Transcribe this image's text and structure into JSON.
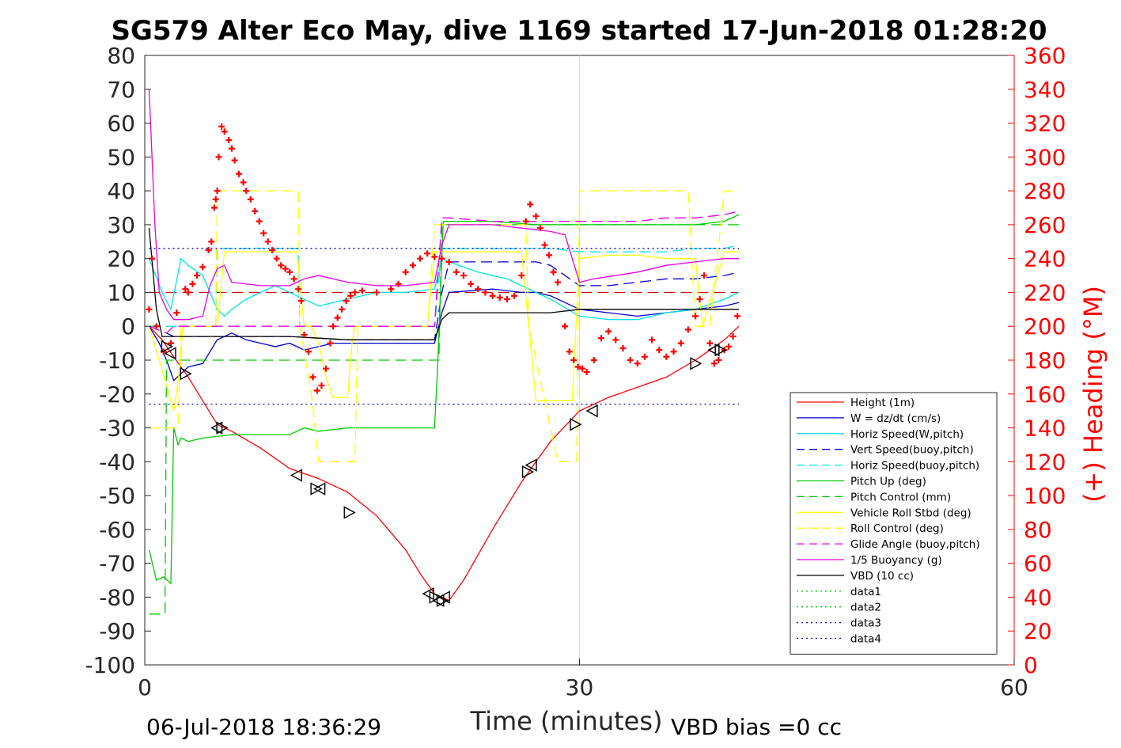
{
  "chart_data": {
    "type": "line",
    "title": "SG579 Alter Eco May, dive 1169 started 17-Jun-2018 01:28:20",
    "xlabel": "Time (minutes)",
    "ylabel_right": "(+) Heading (°M)",
    "footer_left": "06-Jul-2018 18:36:29",
    "footer_right": "VBD bias =0 cc",
    "xlim": [
      0,
      60
    ],
    "ylim": [
      -100,
      80
    ],
    "ylim_right": [
      0,
      360
    ],
    "x_ticks": [
      0,
      30,
      60
    ],
    "y_ticks": [
      -100,
      -90,
      -80,
      -70,
      -60,
      -50,
      -40,
      -30,
      -20,
      -10,
      0,
      10,
      20,
      30,
      40,
      50,
      60,
      70,
      80
    ],
    "y_ticks_right": [
      0,
      20,
      40,
      60,
      80,
      100,
      120,
      140,
      160,
      180,
      200,
      220,
      240,
      260,
      280,
      300,
      320,
      340,
      360
    ],
    "grid": "x at 30",
    "legend_position": "bottom-right",
    "colors": {
      "right_axis": "#ff0000",
      "heading_markers": "#ff0000",
      "turn_markers": "#000000"
    },
    "series": [
      {
        "name": "Height (1m)",
        "color": "#ff0000",
        "dash": "solid",
        "x": [
          0.3,
          1.2,
          2.0,
          3.0,
          4.0,
          5.0,
          6.0,
          8.0,
          10.0,
          12.0,
          14.0,
          16.0,
          18.0,
          19.0,
          20.0,
          21.0,
          22.0,
          24.0,
          26.0,
          27.0,
          28.0,
          30.0,
          32.0,
          34.0,
          36.0,
          38.0,
          39.0,
          40.0,
          41.0
        ],
        "y": [
          0,
          -4,
          -9,
          -15,
          -22,
          -29,
          -31,
          -36,
          -42,
          -45,
          -49,
          -56,
          -66,
          -73,
          -79,
          -81,
          -75,
          -60,
          -46,
          -40,
          -34,
          -25,
          -21,
          -18,
          -15,
          -10,
          -7,
          -4,
          0
        ]
      },
      {
        "name": "W = dz/dt (cm/s)",
        "color": "#0000cc",
        "dash": "solid",
        "x": [
          0.3,
          1.0,
          1.5,
          2.0,
          2.5,
          3.0,
          4.0,
          5.0,
          6.0,
          7.0,
          8.0,
          9.0,
          10.0,
          11.0,
          12.0,
          13.0,
          14.0,
          16.0,
          18.0,
          20.0,
          20.5,
          21.0,
          24.0,
          26.0,
          27.0,
          28.0,
          30.0,
          32.0,
          34.0,
          36.0,
          38.0,
          40.0,
          41.0
        ],
        "y": [
          0,
          -5,
          -10,
          -16,
          -14,
          -12,
          -11,
          -4,
          -2,
          -4,
          -5,
          -6,
          -5,
          -7,
          -6,
          -5,
          -5,
          -5,
          -5,
          -5,
          4,
          10,
          11,
          10,
          10,
          9,
          5,
          4,
          3,
          4,
          5,
          6,
          7
        ]
      },
      {
        "name": "Horiz Speed(W,pitch)",
        "color": "#00e5e5",
        "dash": "solid",
        "x": [
          0.3,
          1.2,
          1.8,
          2.5,
          3.0,
          4.0,
          5.0,
          5.5,
          6.0,
          7.0,
          8.0,
          9.0,
          10.0,
          11.0,
          12.0,
          13.0,
          14.0,
          16.0,
          18.0,
          20.0,
          20.5,
          21.0,
          23.0,
          25.0,
          26.0,
          28.0,
          30.0,
          32.0,
          34.0,
          36.0,
          38.0,
          40.0,
          41.0
        ],
        "y": [
          20,
          10,
          5,
          20,
          18,
          15,
          5,
          3,
          5,
          8,
          10,
          12,
          10,
          8,
          6,
          7,
          8,
          10,
          10,
          11,
          20,
          19,
          16,
          14,
          12,
          8,
          3,
          2,
          2,
          4,
          5,
          8,
          10
        ]
      },
      {
        "name": "Vert Speed(buoy,pitch)",
        "color": "#0000cc",
        "dash": "dash",
        "x": [
          0.3,
          1.5,
          2.0,
          4.0,
          6.0,
          10.0,
          14.0,
          18.0,
          20.0,
          20.5,
          21.0,
          24.0,
          27.0,
          28.0,
          30.0,
          32.0,
          34.0,
          36.0,
          38.0,
          40.0,
          41.0
        ],
        "y": [
          0,
          -2,
          -3,
          -3,
          -3,
          -3,
          -4,
          -4,
          -4,
          10,
          19,
          19,
          19,
          18,
          12,
          12,
          13,
          14,
          14,
          15,
          16
        ]
      },
      {
        "name": "Horiz Speed(buoy,pitch)",
        "color": "#00e5e5",
        "dash": "dash",
        "x": [
          0.3,
          4.9,
          5.0,
          8.0,
          10.6,
          10.7,
          14.0,
          18.0,
          20.0,
          20.5,
          21.0,
          24.0,
          27.0,
          28.0,
          30.0,
          32.0,
          34.0,
          36.0,
          38.0,
          40.0,
          41.0
        ],
        "y": [
          0,
          0,
          23,
          23,
          23,
          0,
          0,
          0,
          0,
          23,
          23,
          23,
          23,
          23,
          22,
          22,
          22,
          22,
          23,
          23,
          24
        ]
      },
      {
        "name": "Pitch Up (deg)",
        "color": "#00cc00",
        "dash": "solid",
        "x": [
          0.3,
          0.8,
          1.3,
          1.8,
          2.0,
          2.3,
          2.5,
          3.0,
          4.0,
          6.0,
          10.0,
          11.0,
          12.0,
          14.0,
          18.0,
          20.0,
          20.2,
          20.6,
          24.0,
          27.0,
          30.0,
          34.0,
          38.0,
          40.0,
          41.0
        ],
        "y": [
          -66,
          -75,
          -74,
          -76,
          -30,
          -35,
          -33,
          -34,
          -33,
          -32,
          -32,
          -30,
          -31,
          -30,
          -30,
          -30,
          -13,
          31,
          31,
          30,
          30,
          30,
          30,
          31,
          33
        ]
      },
      {
        "name": "Pitch Control (mm)",
        "color": "#00cc00",
        "dash": "dash",
        "x": [
          0.3,
          1.0,
          1.4,
          1.5,
          2.0,
          3.0,
          18.0,
          20.3,
          20.5,
          27.0,
          30.0,
          38.0,
          41.0
        ],
        "y": [
          -85,
          -85,
          -85,
          -10,
          -10,
          -10,
          -10,
          -10,
          30,
          30,
          30,
          30,
          30
        ]
      },
      {
        "name": "Vehicle Roll Stbd (deg)",
        "color": "#ffff00",
        "dash": "solid",
        "x": [
          0.3,
          1.0,
          2.0,
          2.5,
          2.6,
          3.0,
          5.0,
          5.5,
          8.0,
          10.5,
          11.0,
          11.5,
          12.0,
          12.5,
          13.0,
          14.0,
          14.3,
          14.5,
          16.0,
          18.0,
          19.5,
          20.0,
          20.5,
          22.0,
          26.0,
          26.5,
          27.0,
          29.5,
          30.0,
          32.0,
          34.0,
          36.0,
          38.0,
          38.5,
          40.0,
          41.0
        ],
        "y": [
          0,
          -10,
          -25,
          -10,
          0,
          0,
          0,
          22,
          22,
          22,
          0,
          0,
          -5,
          -15,
          -21,
          -21,
          -5,
          0,
          0,
          0,
          0,
          22,
          22,
          22,
          22,
          0,
          -22,
          -22,
          20,
          21,
          21,
          20,
          20,
          0,
          22,
          22
        ]
      },
      {
        "name": "Roll Control (deg)",
        "color": "#ffff00",
        "dash": "dash",
        "x": [
          0.3,
          2.3,
          2.5,
          2.7,
          4.9,
          5.0,
          10.6,
          10.7,
          11.5,
          12.0,
          14.5,
          14.7,
          19.5,
          20.0,
          26.3,
          26.5,
          28.5,
          29.8,
          30.0,
          37.5,
          38.0,
          39.0,
          40.0,
          41.0
        ],
        "y": [
          -30,
          -30,
          0,
          0,
          0,
          40,
          40,
          0,
          -20,
          -40,
          -40,
          0,
          0,
          30,
          30,
          0,
          -40,
          -40,
          40,
          40,
          0,
          0,
          40,
          40
        ]
      },
      {
        "name": "Glide Angle (buoy,pitch)",
        "color": "#e600e6",
        "dash": "dash",
        "x": [
          0.3,
          1.5,
          2.0,
          4.0,
          5.0,
          8.0,
          10.6,
          10.7,
          14.0,
          18.0,
          20.0,
          20.5,
          21.0,
          24.0,
          27.0,
          28.0,
          30.0,
          32.0,
          34.0,
          36.0,
          38.0,
          40.0,
          41.0
        ],
        "y": [
          0,
          -2,
          0,
          0,
          0,
          0,
          0,
          0,
          0,
          0,
          0,
          32,
          32,
          31,
          31,
          31,
          31,
          31,
          31,
          32,
          32,
          33,
          34
        ]
      },
      {
        "name": "1/5 Buoyancy (g)",
        "color": "#e600e6",
        "dash": "solid",
        "x": [
          0.3,
          0.7,
          1.0,
          1.5,
          2.0,
          3.0,
          4.0,
          4.5,
          5.0,
          5.5,
          6.0,
          8.0,
          10.0,
          11.0,
          12.0,
          14.0,
          16.0,
          18.0,
          20.0,
          20.5,
          21.0,
          24.0,
          26.0,
          28.0,
          29.0,
          30.0,
          31.0,
          34.0,
          36.0,
          38.0,
          40.0,
          41.0
        ],
        "y": [
          70,
          30,
          10,
          5,
          2,
          2,
          3,
          12,
          17,
          18,
          13,
          12,
          12,
          14,
          15,
          13,
          12,
          12,
          13,
          24,
          30,
          30,
          29,
          28,
          27,
          13,
          14,
          16,
          18,
          19,
          20,
          20
        ]
      },
      {
        "name": "VBD (10 cc)",
        "color": "#000000",
        "dash": "solid",
        "x": [
          0.3,
          0.8,
          1.2,
          2.0,
          3.0,
          10.0,
          14.0,
          18.0,
          20.0,
          20.5,
          21.0,
          24.0,
          27.0,
          28.0,
          30.0,
          34.0,
          38.0,
          41.0
        ],
        "y": [
          29,
          5,
          -3,
          -3,
          -3,
          -3,
          -4,
          -4,
          -4,
          2,
          4,
          4,
          4,
          4,
          5,
          5,
          5,
          5
        ]
      },
      {
        "name": "data1",
        "color": "#00cc00",
        "dash": "dot",
        "x": [],
        "y": []
      },
      {
        "name": "data2",
        "color": "#00cc00",
        "dash": "dot",
        "x": [],
        "y": []
      },
      {
        "name": "data3",
        "color": "#0000cc",
        "dash": "dot",
        "x": [
          0.3,
          41.0
        ],
        "y": [
          23,
          23
        ]
      },
      {
        "name": "data4",
        "color": "#0000cc",
        "dash": "dot",
        "x": [
          0.3,
          41.0
        ],
        "y": [
          -23,
          -23
        ]
      }
    ],
    "reference_line": {
      "color": "#cc0000",
      "dash": "dash",
      "y": 10
    },
    "heading_markers": {
      "x": [
        0.3,
        0.5,
        0.8,
        1.3,
        1.8,
        2.2,
        2.8,
        3.0,
        3.3,
        3.6,
        4.0,
        4.4,
        4.6,
        4.8,
        4.9,
        5.0,
        5.1,
        5.3,
        5.5,
        5.8,
        6.0,
        6.2,
        6.5,
        6.8,
        7.0,
        7.3,
        7.6,
        7.9,
        8.2,
        8.5,
        8.8,
        9.1,
        9.4,
        9.7,
        10.0,
        10.3,
        10.6,
        10.8,
        11.0,
        11.3,
        11.6,
        11.9,
        12.2,
        12.5,
        12.8,
        13.0,
        13.3,
        13.6,
        13.9,
        14.2,
        14.5,
        15.0,
        16.0,
        17.0,
        17.5,
        18.0,
        18.5,
        19.0,
        19.5,
        20.0,
        20.5,
        21.0,
        21.5,
        22.0,
        22.5,
        23.0,
        23.5,
        24.0,
        24.5,
        25.0,
        25.5,
        26.0,
        26.3,
        26.6,
        27.0,
        27.3,
        27.6,
        27.9,
        28.2,
        28.5,
        29.0,
        29.3,
        29.6,
        29.9,
        30.2,
        30.5,
        31.0,
        31.5,
        32.0,
        32.5,
        33.0,
        33.5,
        34.0,
        34.5,
        35.0,
        35.5,
        36.0,
        36.5,
        37.0,
        37.5,
        38.0,
        38.3,
        38.6,
        39.0,
        39.3,
        39.6,
        40.0,
        40.3,
        40.6,
        40.9
      ],
      "y": [
        210,
        240,
        200,
        185,
        190,
        208,
        222,
        220,
        225,
        230,
        235,
        245,
        250,
        270,
        275,
        280,
        300,
        318,
        315,
        310,
        305,
        298,
        290,
        285,
        280,
        275,
        268,
        262,
        255,
        250,
        245,
        240,
        236,
        234,
        232,
        228,
        222,
        215,
        195,
        185,
        170,
        162,
        165,
        175,
        190,
        200,
        205,
        210,
        215,
        218,
        220,
        221,
        220,
        222,
        225,
        232,
        236,
        240,
        243,
        241,
        240,
        238,
        232,
        230,
        225,
        222,
        220,
        218,
        217,
        216,
        218,
        230,
        262,
        272,
        265,
        258,
        248,
        242,
        232,
        226,
        200,
        185,
        180,
        176,
        175,
        173,
        180,
        193,
        197,
        192,
        187,
        180,
        178,
        182,
        192,
        186,
        182,
        185,
        190,
        198,
        206,
        216,
        230,
        190,
        178,
        180,
        186,
        188,
        194,
        206
      ]
    },
    "turn_markers": {
      "x": [
        1.5,
        1.8,
        2.8,
        5.0,
        5.3,
        10.5,
        11.8,
        12.1,
        14.1,
        19.6,
        20.0,
        20.3,
        20.5,
        20.7,
        26.4,
        26.7,
        29.7,
        30.9,
        38.0,
        39.3,
        39.7
      ],
      "y": [
        -6,
        -8,
        -14,
        -30,
        -30,
        -44,
        -48,
        -48,
        -55,
        -79,
        -80,
        -81,
        -81,
        -80,
        -43,
        -41,
        -29,
        -25,
        -11,
        -7,
        -7
      ]
    }
  }
}
